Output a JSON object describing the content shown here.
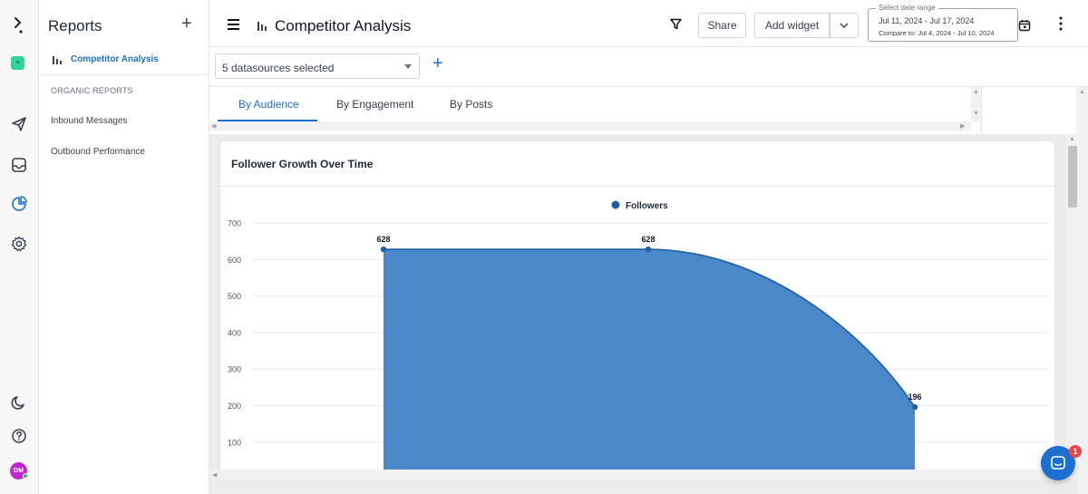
{
  "sidebar": {
    "title": "Reports",
    "active_report": "Competitor Analysis",
    "section_heading": "ORGANIC REPORTS",
    "items": [
      {
        "label": "Inbound Messages"
      },
      {
        "label": "Outbound Performance"
      }
    ]
  },
  "rail": {
    "workspace_badge": "≡",
    "avatar_initials": "DM",
    "icons": [
      "logo-icon",
      "send-icon",
      "inbox-icon",
      "analytics-icon",
      "settings-icon",
      "moon-icon",
      "help-icon"
    ]
  },
  "header": {
    "title": "Competitor Analysis",
    "share_label": "Share",
    "add_widget_label": "Add widget",
    "date_range": {
      "legend": "Select date range",
      "value": "Jul 11, 2024 - Jul 17, 2024",
      "compare": "Compare to: Jul 4, 2024 - Jul 10, 2024"
    }
  },
  "datasources": {
    "selected_label": "5 datasources selected"
  },
  "tabs": [
    {
      "label": "By Audience",
      "active": true
    },
    {
      "label": "By Engagement",
      "active": false
    },
    {
      "label": "By Posts",
      "active": false
    }
  ],
  "widget": {
    "title": "Follower Growth Over Time"
  },
  "chat": {
    "badge_count": "1"
  },
  "colors": {
    "accent": "#1d6fd1",
    "area_fill": "#4a88c7",
    "line": "#1f5fa8"
  },
  "chart_data": {
    "type": "area",
    "title": "Follower Growth Over Time",
    "legend_position": "top-center",
    "series": [
      {
        "name": "Followers",
        "values": [
          628,
          628,
          196
        ]
      }
    ],
    "data_labels": [
      "628",
      "628",
      "196"
    ],
    "y_ticks": [
      100,
      200,
      300,
      400,
      500,
      600,
      700
    ],
    "ylim": [
      0,
      700
    ],
    "grid": true
  }
}
